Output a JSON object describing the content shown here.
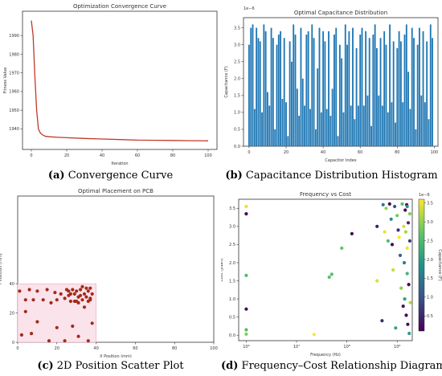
{
  "captions": {
    "a_letter": "(a)",
    "a_text": "Convergence Curve",
    "b_letter": "(b)",
    "b_text": "Capacitance Distribution Histogram",
    "c_letter": "(c)",
    "c_text": "2D Position Scatter Plot",
    "d_letter": "(d)",
    "d_text": "Frequency–Cost Relationship Diagram"
  },
  "chart_data": [
    {
      "type": "line",
      "title": "Optimization Convergence Curve",
      "xlabel": "Iteration",
      "ylabel": "Fitness Value",
      "xlim": [
        -5,
        105
      ],
      "ylim": [
        1929,
        2003
      ],
      "xticks": [
        "0",
        "20",
        "40",
        "60",
        "80",
        "100"
      ],
      "yticks": [
        "1940",
        "1950",
        "1960",
        "1970",
        "1980",
        "1990"
      ],
      "color": "#c0392b",
      "x": [
        0,
        1,
        2,
        3,
        4,
        5,
        6,
        7,
        8,
        10,
        15,
        20,
        30,
        40,
        50,
        60,
        70,
        80,
        90,
        100
      ],
      "y": [
        1998,
        1990,
        1968,
        1950,
        1940,
        1938,
        1937,
        1936.5,
        1936,
        1935.8,
        1935.5,
        1935.3,
        1934.9,
        1934.6,
        1934.3,
        1934.0,
        1933.9,
        1933.8,
        1933.7,
        1933.6
      ]
    },
    {
      "type": "bar",
      "title": "Optimal Capacitance Distribution",
      "xlabel": "Capacitor Index",
      "ylabel": "Capacitance (F)",
      "scale_label": "1e−6",
      "xlim": [
        -3,
        102
      ],
      "ylim": [
        0,
        3.8
      ],
      "xticks": [
        "0",
        "20",
        "40",
        "60",
        "80",
        "100"
      ],
      "yticks": [
        "0.0",
        "0.5",
        "1.0",
        "1.5",
        "2.0",
        "2.5",
        "3.0",
        "3.5"
      ],
      "color": "#1f77b4",
      "values": [
        3.0,
        3.5,
        3.6,
        1.1,
        3.5,
        3.2,
        3.1,
        1.0,
        3.6,
        3.4,
        1.6,
        1.2,
        3.5,
        3.2,
        0.5,
        3.0,
        3.3,
        3.4,
        1.4,
        3.2,
        1.3,
        0.3,
        3.1,
        2.5,
        3.6,
        3.3,
        1.7,
        0.9,
        3.5,
        2.0,
        1.2,
        3.3,
        3.4,
        1.1,
        3.6,
        3.2,
        0.5,
        2.3,
        3.5,
        1.0,
        3.4,
        3.1,
        1.1,
        3.4,
        0.9,
        1.7,
        3.3,
        3.5,
        0.3,
        3.0,
        2.6,
        1.0,
        3.6,
        3.0,
        3.4,
        1.2,
        3.5,
        0.8,
        2.9,
        1.2,
        3.3,
        3.5,
        1.2,
        3.4,
        1.5,
        3.2,
        0.6,
        3.3,
        3.6,
        2.9,
        1.5,
        3.2,
        1.2,
        3.4,
        3.0,
        1.0,
        3.6,
        1.3,
        3.1,
        0.7,
        2.9,
        3.4,
        3.1,
        1.3,
        3.3,
        3.6,
        2.2,
        1.1,
        3.5,
        3.2,
        0.5,
        3.0,
        3.5,
        1.5,
        3.4,
        1.3,
        3.1,
        0.8,
        3.6,
        3.2
      ]
    },
    {
      "type": "scatter",
      "title": "Optimal Placement on PCB",
      "xlabel": "X Position (mm)",
      "ylabel": "Y Position (mm)",
      "xlim": [
        0,
        100
      ],
      "ylim": [
        0,
        100
      ],
      "xticks": [
        "0",
        "20",
        "40",
        "60",
        "80",
        "100"
      ],
      "yticks": [
        "0",
        "20",
        "40"
      ],
      "color": "#a52a1a",
      "region": {
        "x": [
          0,
          40
        ],
        "y": [
          0,
          40
        ]
      },
      "points": [
        [
          1,
          35
        ],
        [
          4,
          29
        ],
        [
          6,
          36
        ],
        [
          8,
          29
        ],
        [
          10,
          35
        ],
        [
          13,
          29
        ],
        [
          15,
          36
        ],
        [
          17,
          27
        ],
        [
          19,
          34
        ],
        [
          20,
          29
        ],
        [
          22,
          33
        ],
        [
          24,
          30
        ],
        [
          25,
          36
        ],
        [
          26,
          35
        ],
        [
          27,
          33
        ],
        [
          28,
          36
        ],
        [
          29,
          28
        ],
        [
          30,
          35
        ],
        [
          31,
          31
        ],
        [
          32,
          36
        ],
        [
          33,
          29
        ],
        [
          34,
          33
        ],
        [
          35,
          37
        ],
        [
          36,
          35
        ],
        [
          37,
          29
        ],
        [
          38,
          33
        ],
        [
          30,
          28
        ],
        [
          33,
          38
        ],
        [
          36,
          28
        ],
        [
          26,
          32
        ],
        [
          2,
          5
        ],
        [
          7,
          6
        ],
        [
          10,
          14
        ],
        [
          16,
          1
        ],
        [
          20,
          10
        ],
        [
          24,
          1
        ],
        [
          28,
          11
        ],
        [
          31,
          4
        ],
        [
          34,
          24
        ],
        [
          36,
          1
        ],
        [
          38,
          13
        ],
        [
          4,
          21
        ],
        [
          37,
          30
        ],
        [
          37,
          37
        ],
        [
          35,
          31
        ],
        [
          32,
          32
        ],
        [
          31,
          27
        ],
        [
          29,
          33
        ],
        [
          27,
          28
        ]
      ]
    },
    {
      "type": "scatter",
      "title": "Frequency vs Cost",
      "xlabel": "Frequency (Hz)",
      "ylabel": "Cost (yuan)",
      "xscale": "log",
      "xlim_log10": [
        5.85,
        9.3
      ],
      "ylim": [
        -0.15,
        3.75
      ],
      "xticks": [
        "10⁶",
        "10⁷",
        "10⁸",
        "10⁹"
      ],
      "yticks": [
        "0.0",
        "0.5",
        "1.0",
        "1.5",
        "2.0",
        "2.5",
        "3.0",
        "3.5"
      ],
      "colorbar": {
        "label": "Capacitance (F)",
        "scale_label": "1e−6",
        "ticks": [
          "0.5",
          "1.0",
          "1.5",
          "2.0",
          "2.5",
          "3.0",
          "3.5"
        ],
        "range": [
          0.1,
          3.6
        ]
      },
      "points": [
        {
          "log_f": 6.0,
          "cost": 3.55,
          "c": 3.5
        },
        {
          "log_f": 6.0,
          "cost": 3.35,
          "c": 0.2
        },
        {
          "log_f": 6.0,
          "cost": 1.65,
          "c": 2.5
        },
        {
          "log_f": 6.0,
          "cost": 0.72,
          "c": 0.2
        },
        {
          "log_f": 6.0,
          "cost": 0.15,
          "c": 2.5
        },
        {
          "log_f": 6.0,
          "cost": 0.03,
          "c": 2.9
        },
        {
          "log_f": 7.35,
          "cost": 0.02,
          "c": 3.6
        },
        {
          "log_f": 7.65,
          "cost": 1.6,
          "c": 2.6
        },
        {
          "log_f": 7.7,
          "cost": 1.68,
          "c": 2.6
        },
        {
          "log_f": 7.9,
          "cost": 2.4,
          "c": 2.7
        },
        {
          "log_f": 8.1,
          "cost": 2.8,
          "c": 0.2
        },
        {
          "log_f": 8.6,
          "cost": 3.0,
          "c": 0.4
        },
        {
          "log_f": 8.6,
          "cost": 1.5,
          "c": 3.4
        },
        {
          "log_f": 8.7,
          "cost": 0.4,
          "c": 0.5
        },
        {
          "log_f": 8.72,
          "cost": 3.6,
          "c": 1.5
        },
        {
          "log_f": 8.75,
          "cost": 2.85,
          "c": 3.5
        },
        {
          "log_f": 8.78,
          "cost": 3.5,
          "c": 3.0
        },
        {
          "log_f": 8.82,
          "cost": 2.6,
          "c": 2.5
        },
        {
          "log_f": 8.85,
          "cost": 3.62,
          "c": 0.3
        },
        {
          "log_f": 8.88,
          "cost": 3.2,
          "c": 1.8
        },
        {
          "log_f": 8.9,
          "cost": 2.5,
          "c": 0.2
        },
        {
          "log_f": 8.92,
          "cost": 1.8,
          "c": 3.3
        },
        {
          "log_f": 8.95,
          "cost": 3.55,
          "c": 1.0
        },
        {
          "log_f": 8.97,
          "cost": 0.2,
          "c": 2.2
        },
        {
          "log_f": 9.0,
          "cost": 3.3,
          "c": 2.8
        },
        {
          "log_f": 9.02,
          "cost": 2.9,
          "c": 0.6
        },
        {
          "log_f": 9.04,
          "cost": 2.7,
          "c": 3.6
        },
        {
          "log_f": 9.06,
          "cost": 2.2,
          "c": 1.2
        },
        {
          "log_f": 9.08,
          "cost": 1.3,
          "c": 3.0
        },
        {
          "log_f": 9.1,
          "cost": 3.62,
          "c": 2.6
        },
        {
          "log_f": 9.12,
          "cost": 0.8,
          "c": 0.3
        },
        {
          "log_f": 9.13,
          "cost": 3.0,
          "c": 3.4
        },
        {
          "log_f": 9.14,
          "cost": 2.0,
          "c": 1.6
        },
        {
          "log_f": 9.15,
          "cost": 1.0,
          "c": 2.1
        },
        {
          "log_f": 9.16,
          "cost": 3.45,
          "c": 0.2
        },
        {
          "log_f": 9.17,
          "cost": 2.85,
          "c": 3.1
        },
        {
          "log_f": 9.18,
          "cost": 0.55,
          "c": 0.2
        },
        {
          "log_f": 9.19,
          "cost": 3.6,
          "c": 0.2
        },
        {
          "log_f": 9.2,
          "cost": 1.7,
          "c": 2.4
        },
        {
          "log_f": 9.2,
          "cost": 2.4,
          "c": 3.5
        },
        {
          "log_f": 9.21,
          "cost": 0.3,
          "c": 0.2
        },
        {
          "log_f": 9.22,
          "cost": 3.1,
          "c": 0.5
        },
        {
          "log_f": 9.23,
          "cost": 1.4,
          "c": 0.2
        },
        {
          "log_f": 9.24,
          "cost": 0.05,
          "c": 2.0
        },
        {
          "log_f": 9.25,
          "cost": 3.35,
          "c": 2.9
        },
        {
          "log_f": 9.25,
          "cost": 2.6,
          "c": 0.7
        },
        {
          "log_f": 9.26,
          "cost": 0.9,
          "c": 3.2
        },
        {
          "log_f": 9.2,
          "cost": 3.55,
          "c": 1.9
        }
      ]
    }
  ]
}
